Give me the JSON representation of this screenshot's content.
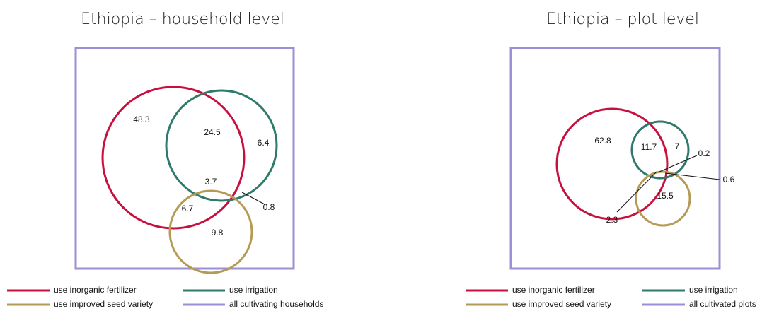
{
  "chart_data": [
    {
      "type": "venn",
      "title": "Ethiopia – household level",
      "sets": [
        {
          "name": "use inorganic fertilizer",
          "color": "#c8103f"
        },
        {
          "name": "use irrigation",
          "color": "#2f7a6b"
        },
        {
          "name": "use improved seed variety",
          "color": "#b59a55"
        }
      ],
      "universe": {
        "name": "all cultivating households",
        "color": "#9b90d6"
      },
      "regions": [
        48.3,
        24.5,
        6.4,
        3.7,
        6.7,
        0.8,
        9.8
      ]
    },
    {
      "type": "venn",
      "title": "Ethiopia – plot level",
      "sets": [
        {
          "name": "use inorganic fertilizer",
          "color": "#c8103f"
        },
        {
          "name": "use irrigation",
          "color": "#2f7a6b"
        },
        {
          "name": "use improved seed variety",
          "color": "#b59a55"
        }
      ],
      "universe": {
        "name": "all cultivated plots",
        "color": "#9b90d6"
      },
      "regions": [
        62.8,
        11.7,
        7.0,
        0.2,
        0.6,
        15.5,
        2.3
      ]
    }
  ]
}
